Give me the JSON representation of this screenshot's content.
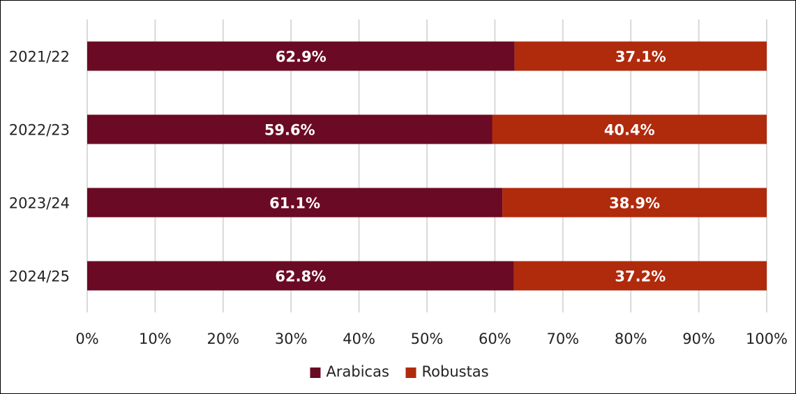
{
  "chart_data": {
    "type": "bar",
    "orientation": "horizontal",
    "stacked": true,
    "normalized": true,
    "categories": [
      "2021/22",
      "2022/23",
      "2023/24",
      "2024/25"
    ],
    "series": [
      {
        "name": "Arabicas",
        "color": "#6b0a24",
        "values": [
          62.9,
          59.6,
          61.1,
          62.8
        ],
        "labels": [
          "62.9%",
          "59.6%",
          "61.1%",
          "62.8%"
        ]
      },
      {
        "name": "Robustas",
        "color": "#b02a0c",
        "values": [
          37.1,
          40.4,
          38.9,
          37.2
        ],
        "labels": [
          "37.1%",
          "40.4%",
          "38.9%",
          "37.2%"
        ]
      }
    ],
    "xlim": [
      0,
      100
    ],
    "xticks": [
      0,
      10,
      20,
      30,
      40,
      50,
      60,
      70,
      80,
      90,
      100
    ],
    "xtick_labels": [
      "0%",
      "10%",
      "20%",
      "30%",
      "40%",
      "50%",
      "60%",
      "70%",
      "80%",
      "90%",
      "100%"
    ],
    "grid": true,
    "legend_position": "bottom"
  }
}
